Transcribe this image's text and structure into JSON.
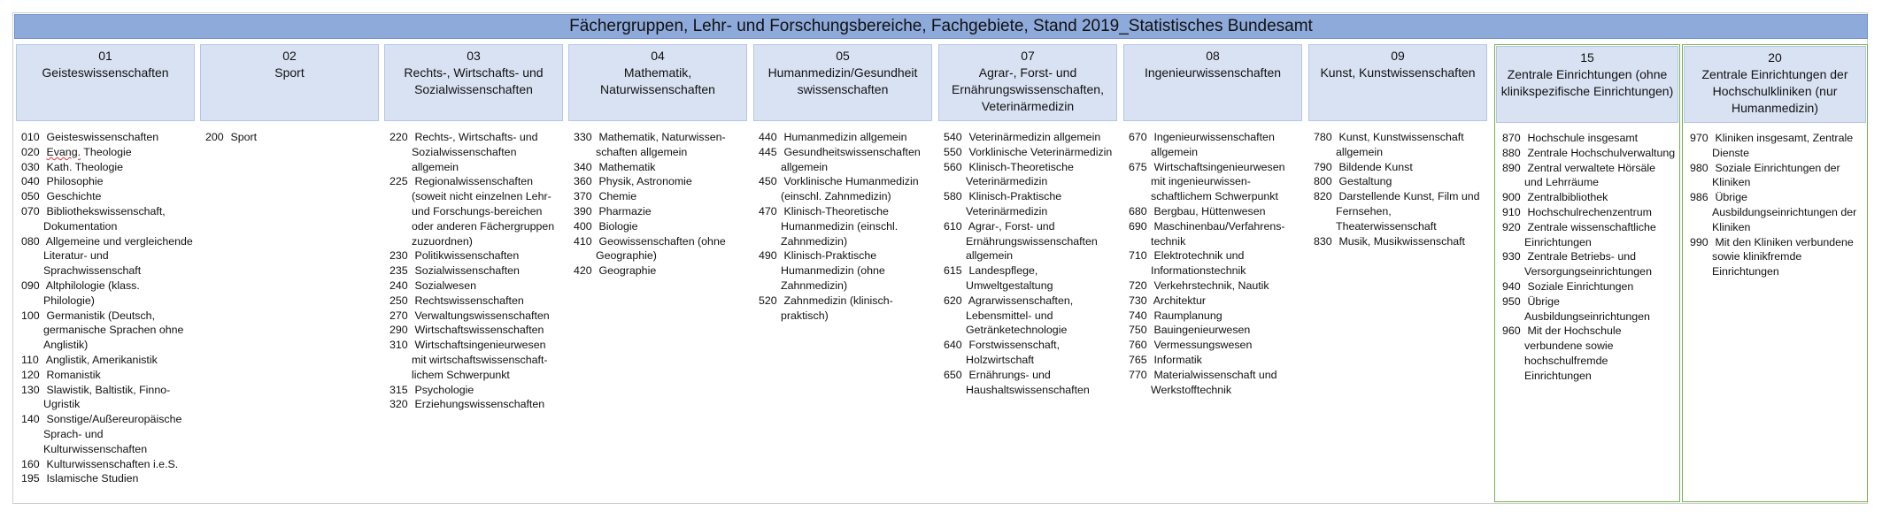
{
  "title": "Fächergruppen, Lehr- und Forschungsbereiche, Fachgebiete, Stand 2019_Statistisches Bundesamt",
  "columns": [
    {
      "code": "01",
      "name": "Geisteswissenschaften",
      "items": [
        {
          "c": "010",
          "t": "Geisteswissenschaften"
        },
        {
          "c": "020",
          "t": "Evang. Theologie"
        },
        {
          "c": "030",
          "t": "Kath. Theologie"
        },
        {
          "c": "040",
          "t": "Philosophie"
        },
        {
          "c": "050",
          "t": "Geschichte"
        },
        {
          "c": "070",
          "t": "Bibliothekswissenschaft, Dokumentation"
        },
        {
          "c": "080",
          "t": "Allgemeine und vergleichende Literatur- und Sprachwissenschaft"
        },
        {
          "c": "090",
          "t": "Altphilologie (klass. Philologie)"
        },
        {
          "c": "100",
          "t": "Germanistik (Deutsch, germanische Sprachen ohne Anglistik)"
        },
        {
          "c": "110",
          "t": "Anglistik, Amerikanistik"
        },
        {
          "c": "120",
          "t": "Romanistik"
        },
        {
          "c": "130",
          "t": "Slawistik, Baltistik, Finno-Ugristik"
        },
        {
          "c": "140",
          "t": "Sonstige/Außereuropäische Sprach- und Kulturwissenschaften"
        },
        {
          "c": "160",
          "t": "Kulturwissenschaften i.e.S."
        },
        {
          "c": "195",
          "t": "Islamische Studien"
        }
      ]
    },
    {
      "code": "02",
      "name": "Sport",
      "items": [
        {
          "c": "200",
          "t": "Sport"
        }
      ]
    },
    {
      "code": "03",
      "name": "Rechts-, Wirtschafts- und Sozialwissenschaften",
      "items": [
        {
          "c": "220",
          "t": "Rechts-, Wirtschafts- und Sozialwissenschaften allgemein"
        },
        {
          "c": "225",
          "t": "Regionalwissenschaften (soweit nicht einzelnen Lehr- und Forschungs-bereichen oder anderen Fächergruppen zuzuordnen)"
        },
        {
          "c": "230",
          "t": "Politikwissenschaften"
        },
        {
          "c": "235",
          "t": "Sozialwissenschaften"
        },
        {
          "c": "240",
          "t": "Sozialwesen"
        },
        {
          "c": "250",
          "t": "Rechtswissenschaften"
        },
        {
          "c": "270",
          "t": "Verwaltungswissenschaften"
        },
        {
          "c": "290",
          "t": "Wirtschaftswissenschaften"
        },
        {
          "c": "310",
          "t": "Wirtschaftsingenieurwesen mit wirtschaftswissenschaft-lichem Schwerpunkt"
        },
        {
          "c": "315",
          "t": "Psychologie"
        },
        {
          "c": "320",
          "t": "Erziehungswissenschaften"
        }
      ]
    },
    {
      "code": "04",
      "name": "Mathematik, Naturwissenschaften",
      "items": [
        {
          "c": "330",
          "t": "Mathematik, Naturwissen-schaften allgemein"
        },
        {
          "c": "340",
          "t": "Mathematik"
        },
        {
          "c": "360",
          "t": "Physik, Astronomie"
        },
        {
          "c": "370",
          "t": "Chemie"
        },
        {
          "c": "390",
          "t": "Pharmazie"
        },
        {
          "c": "400",
          "t": "Biologie"
        },
        {
          "c": "410",
          "t": "Geowissenschaften (ohne Geographie)"
        },
        {
          "c": "420",
          "t": "Geographie"
        }
      ]
    },
    {
      "code": "05",
      "name": "Humanmedizin/Gesundheit swissenschaften",
      "items": [
        {
          "c": "440",
          "t": "Humanmedizin allgemein"
        },
        {
          "c": "445",
          "t": "Gesundheitswissenschaften allgemein"
        },
        {
          "c": "450",
          "t": "Vorklinische Humanmedizin (einschl. Zahnmedizin)"
        },
        {
          "c": "470",
          "t": "Klinisch-Theoretische Humanmedizin (einschl. Zahnmedizin)"
        },
        {
          "c": "490",
          "t": "Klinisch-Praktische Humanmedizin (ohne Zahnmedizin)"
        },
        {
          "c": "520",
          "t": "Zahnmedizin (klinisch-praktisch)"
        }
      ]
    },
    {
      "code": "07",
      "name": "Agrar-, Forst- und Ernährungswissenschaften, Veterinärmedizin",
      "items": [
        {
          "c": "540",
          "t": "Veterinärmedizin allgemein"
        },
        {
          "c": "550",
          "t": "Vorklinische Veterinärmedizin"
        },
        {
          "c": "560",
          "t": "Klinisch-Theoretische Veterinärmedizin"
        },
        {
          "c": "580",
          "t": "Klinisch-Praktische Veterinärmedizin"
        },
        {
          "c": "610",
          "t": "Agrar-, Forst- und Ernährungswissenschaften allgemein"
        },
        {
          "c": "615",
          "t": "Landespflege, Umweltgestaltung"
        },
        {
          "c": "620",
          "t": "Agrarwissenschaften, Lebensmittel- und Getränketechnologie"
        },
        {
          "c": "640",
          "t": "Forstwissenschaft, Holzwirtschaft"
        },
        {
          "c": "650",
          "t": "Ernährungs- und Haushaltswissenschaften"
        }
      ]
    },
    {
      "code": "08",
      "name": "Ingenieurwissenschaften",
      "items": [
        {
          "c": "670",
          "t": "Ingenieurwissenschaften allgemein"
        },
        {
          "c": "675",
          "t": "Wirtschaftsingenieurwesen mit ingenieurwissen-schaftlichem Schwerpunkt"
        },
        {
          "c": "680",
          "t": "Bergbau, Hüttenwesen"
        },
        {
          "c": "690",
          "t": "Maschinenbau/Verfahrens-technik"
        },
        {
          "c": "710",
          "t": "Elektrotechnik und Informationstechnik"
        },
        {
          "c": "720",
          "t": "Verkehrstechnik, Nautik"
        },
        {
          "c": "730",
          "t": "Architektur"
        },
        {
          "c": "740",
          "t": "Raumplanung"
        },
        {
          "c": "750",
          "t": "Bauingenieurwesen"
        },
        {
          "c": "760",
          "t": "Vermessungswesen"
        },
        {
          "c": "765",
          "t": "Informatik"
        },
        {
          "c": "770",
          "t": "Materialwissenschaft und Werkstofftechnik"
        }
      ]
    },
    {
      "code": "09",
      "name": "Kunst, Kunstwissenschaften",
      "items": [
        {
          "c": "780",
          "t": "Kunst, Kunstwissenschaft allgemein"
        },
        {
          "c": "790",
          "t": "Bildende Kunst"
        },
        {
          "c": "800",
          "t": "Gestaltung"
        },
        {
          "c": "820",
          "t": "Darstellende Kunst, Film und Fernsehen, Theaterwissenschaft"
        },
        {
          "c": "830",
          "t": "Musik, Musikwissenschaft"
        }
      ]
    },
    {
      "code": "15",
      "name": "Zentrale Einrichtungen (ohne klinikspezifische Einrichtungen)",
      "items": [
        {
          "c": "870",
          "t": "Hochschule insgesamt"
        },
        {
          "c": "880",
          "t": "Zentrale Hochschulverwaltung"
        },
        {
          "c": "890",
          "t": "Zentral verwaltete Hörsäle und Lehrräume"
        },
        {
          "c": "900",
          "t": "Zentralbibliothek"
        },
        {
          "c": "910",
          "t": "Hochschulrechenzentrum"
        },
        {
          "c": "920",
          "t": "Zentrale wissenschaftliche Einrichtungen"
        },
        {
          "c": "930",
          "t": "Zentrale Betriebs- und Versorgungseinrichtungen"
        },
        {
          "c": "940",
          "t": "Soziale Einrichtungen"
        },
        {
          "c": "950",
          "t": "Übrige Ausbildungseinrichtungen"
        },
        {
          "c": "960",
          "t": "Mit der Hochschule verbundene sowie hochschulfremde Einrichtungen"
        }
      ]
    },
    {
      "code": "20",
      "name": "Zentrale Einrichtungen der Hochschulkliniken (nur Humanmedizin)",
      "items": [
        {
          "c": "970",
          "t": "Kliniken insgesamt, Zentrale Dienste"
        },
        {
          "c": "980",
          "t": "Soziale Einrichtungen der Kliniken"
        },
        {
          "c": "986",
          "t": "Übrige Ausbildungseinrichtungen der Kliniken"
        },
        {
          "c": "990",
          "t": "Mit den Kliniken verbundene sowie klinikfremde Einrichtungen"
        }
      ]
    }
  ]
}
